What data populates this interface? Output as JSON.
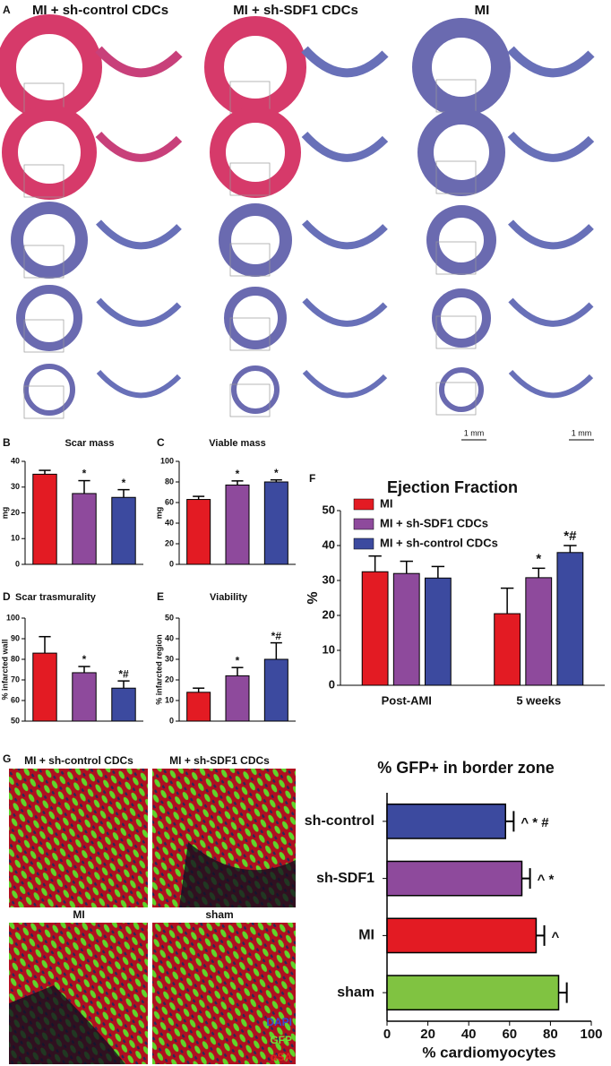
{
  "figure": {
    "panel_a": "A",
    "headers": [
      "MI + sh-control CDCs",
      "MI + sh-SDF1 CDCs",
      "MI"
    ],
    "scale_bars": [
      "1 mm",
      "1 mm"
    ],
    "panel_g": "G",
    "g_images": [
      "MI + sh-control CDCs",
      "MI + sh-SDF1 CDCs",
      "MI",
      "sham"
    ],
    "stains": [
      "DAPI",
      "GFP",
      "αSA"
    ]
  },
  "chart_data": [
    {
      "type": "bar",
      "label": "B",
      "title": "Scar mass",
      "ylabel": "mg",
      "ylim": [
        0,
        40
      ],
      "yticks": [
        0,
        10,
        20,
        30,
        40
      ],
      "values": [
        35,
        27.5,
        26
      ],
      "errors": [
        1.5,
        5,
        3
      ],
      "colors": [
        "#e31b23",
        "#8e4a9c",
        "#3c4a9f"
      ],
      "annotations": [
        null,
        "*",
        "*"
      ]
    },
    {
      "type": "bar",
      "label": "C",
      "title": "Viable mass",
      "ylabel": "mg",
      "ylim": [
        0,
        100
      ],
      "yticks": [
        0,
        20,
        40,
        60,
        80,
        100
      ],
      "values": [
        63,
        77,
        80
      ],
      "errors": [
        3,
        4,
        2
      ],
      "colors": [
        "#e31b23",
        "#8e4a9c",
        "#3c4a9f"
      ],
      "annotations": [
        null,
        "*",
        "*"
      ]
    },
    {
      "type": "bar",
      "label": "D",
      "title": "Scar trasmurality",
      "ylabel": "% infarcted wall",
      "ylim": [
        50,
        100
      ],
      "yticks": [
        50,
        60,
        70,
        80,
        90,
        100
      ],
      "values": [
        83,
        73.5,
        66
      ],
      "errors": [
        8,
        3,
        3.5
      ],
      "colors": [
        "#e31b23",
        "#8e4a9c",
        "#3c4a9f"
      ],
      "annotations": [
        null,
        "*",
        "*#"
      ]
    },
    {
      "type": "bar",
      "label": "E",
      "title": "Viability",
      "ylabel": "% infarcted region",
      "ylim": [
        0,
        50
      ],
      "yticks": [
        0,
        10,
        20,
        30,
        40,
        50
      ],
      "values": [
        14,
        22,
        30
      ],
      "errors": [
        2,
        4,
        8
      ],
      "colors": [
        "#e31b23",
        "#8e4a9c",
        "#3c4a9f"
      ],
      "annotations": [
        null,
        "*",
        "*#"
      ]
    },
    {
      "type": "bar",
      "label": "F",
      "title": "Ejection Fraction",
      "ylabel": "%",
      "ylim": [
        0,
        50
      ],
      "yticks": [
        0,
        10,
        20,
        30,
        40,
        50
      ],
      "categories": [
        "Post-AMI",
        "5 weeks"
      ],
      "series": [
        {
          "name": "MI",
          "color": "#e31b23",
          "values": [
            32.5,
            20.5
          ],
          "errors": [
            4.5,
            7.3
          ],
          "annotations": [
            null,
            null
          ]
        },
        {
          "name": "MI + sh-SDF1 CDCs",
          "color": "#8e4a9c",
          "values": [
            32,
            30.8
          ],
          "errors": [
            3.5,
            2.7
          ],
          "annotations": [
            null,
            "*"
          ]
        },
        {
          "name": "MI + sh-control CDCs",
          "color": "#3c4a9f",
          "values": [
            30.7,
            38
          ],
          "errors": [
            3.3,
            2
          ],
          "annotations": [
            null,
            "*#"
          ]
        }
      ]
    },
    {
      "type": "barh",
      "title": "% GFP+ in border zone",
      "xlabel": "% cardiomyocytes",
      "xlim": [
        0,
        100
      ],
      "xticks": [
        0,
        20,
        40,
        60,
        80,
        100
      ],
      "categories": [
        "sh-control",
        "sh-SDF1",
        "MI",
        "sham"
      ],
      "values": [
        58,
        66,
        73,
        84
      ],
      "errors": [
        4,
        4,
        4,
        4
      ],
      "colors": [
        "#3c4a9f",
        "#8e4a9c",
        "#e31b23",
        "#80c341"
      ],
      "annotations": [
        "^ * #",
        "^ *",
        "^",
        null
      ]
    }
  ]
}
